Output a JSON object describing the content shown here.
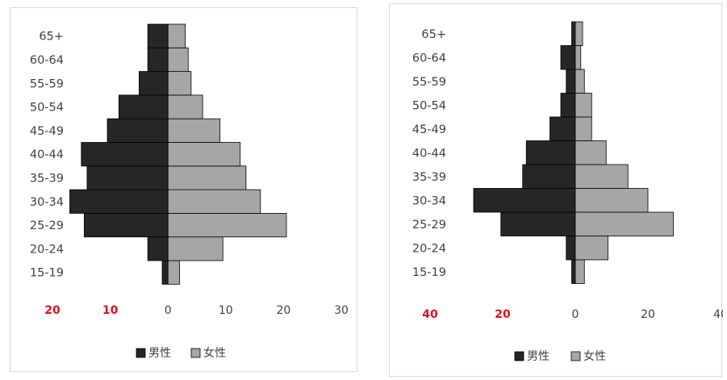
{
  "legend": {
    "male_label": "男性",
    "female_label": "女性",
    "male_color": "#262626",
    "female_color": "#a6a6a6"
  },
  "tick_colors": {
    "negative": "#e0101a",
    "other": "#404040"
  },
  "chart_data": [
    {
      "type": "bar",
      "orientation": "horizontal",
      "style": "population-pyramid",
      "categories": [
        "15-19",
        "20-24",
        "25-29",
        "30-34",
        "35-39",
        "40-44",
        "45-49",
        "50-54",
        "55-59",
        "60-64",
        "65+"
      ],
      "series": [
        {
          "name": "男性",
          "values": [
            1,
            3.5,
            14.5,
            17,
            14,
            15,
            10.5,
            8.5,
            5,
            3.5,
            3.5
          ],
          "color": "#262626"
        },
        {
          "name": "女性",
          "values": [
            2,
            9.5,
            20.5,
            16,
            13.5,
            12.5,
            9,
            6,
            4,
            3.5,
            3
          ],
          "color": "#a6a6a6"
        }
      ],
      "xlim": [
        -20,
        30
      ],
      "xticks": [
        -20,
        -10,
        0,
        10,
        20,
        30
      ],
      "xtick_labels": [
        "20",
        "10",
        "0",
        "10",
        "20",
        "30"
      ],
      "legend_position": "bottom",
      "grid": false
    },
    {
      "type": "bar",
      "orientation": "horizontal",
      "style": "population-pyramid",
      "categories": [
        "15-19",
        "20-24",
        "25-29",
        "30-34",
        "35-39",
        "40-44",
        "45-49",
        "50-54",
        "55-59",
        "60-64",
        "65+"
      ],
      "series": [
        {
          "name": "男性",
          "values": [
            1,
            2.5,
            20.5,
            28,
            14.5,
            13.5,
            7,
            4,
            2.5,
            4,
            1
          ],
          "color": "#262626"
        },
        {
          "name": "女性",
          "values": [
            2.5,
            9,
            27,
            20,
            14.5,
            8.5,
            4.5,
            4.5,
            2.5,
            1.5,
            2
          ],
          "color": "#a6a6a6"
        }
      ],
      "xlim": [
        -40,
        40
      ],
      "xticks": [
        -40,
        -20,
        0,
        20,
        40
      ],
      "xtick_labels": [
        "40",
        "20",
        "0",
        "20",
        "40"
      ],
      "legend_position": "bottom",
      "grid": false
    }
  ]
}
